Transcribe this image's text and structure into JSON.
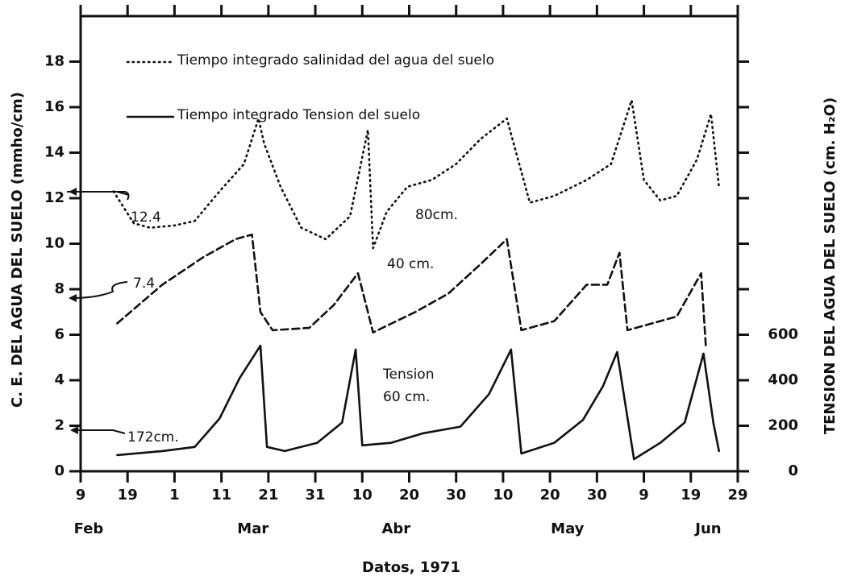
{
  "chart_data": {
    "type": "line",
    "x_title": "Datos, 1971",
    "y_title": "C. E. DEL AGUA DEL SUELO (mmho/cm)",
    "y2_title": "TENSION DEL AGUA DEL SUELO (cm. H₂O)",
    "xlim": [
      0,
      140
    ],
    "xticks": [
      {
        "value": 0,
        "label": "9"
      },
      {
        "value": 10,
        "label": "19"
      },
      {
        "value": 20,
        "label": "1"
      },
      {
        "value": 30,
        "label": "11"
      },
      {
        "value": 40,
        "label": "21"
      },
      {
        "value": 50,
        "label": "31"
      },
      {
        "value": 60,
        "label": "10"
      },
      {
        "value": 70,
        "label": "20"
      },
      {
        "value": 80,
        "label": "30"
      },
      {
        "value": 90,
        "label": "10"
      },
      {
        "value": 100,
        "label": "20"
      },
      {
        "value": 110,
        "label": "30"
      },
      {
        "value": 120,
        "label": "9"
      },
      {
        "value": 130,
        "label": "19"
      },
      {
        "value": 140,
        "label": "29"
      }
    ],
    "month_ticks": [
      {
        "value": 0,
        "label": "Feb"
      },
      {
        "value": 35,
        "label": "Mar"
      },
      {
        "value": 65.5,
        "label": "Abr"
      },
      {
        "value": 102,
        "label": "May"
      },
      {
        "value": 132,
        "label": "Jun"
      }
    ],
    "ylim": [
      0,
      20
    ],
    "yticks": [
      0,
      2,
      4,
      6,
      8,
      10,
      12,
      14,
      16,
      18
    ],
    "y2lim": [
      0,
      2000
    ],
    "y2ticks": [
      0,
      200,
      400,
      600
    ],
    "legend": [
      {
        "label": "Tiempo integrado salinidad del agua del suelo",
        "style": "dotted"
      },
      {
        "label": "Tiempo integrado Tension del suelo",
        "style": "solid"
      }
    ],
    "annotations": [
      "12.4",
      "7.4",
      "172cm.",
      "Tension"
    ],
    "series": [
      {
        "name": "80cm.",
        "color": "#111111",
        "style": "dotted",
        "x": [
          7,
          11.3,
          14.8,
          20,
          24.3,
          29.6,
          34.8,
          37.9,
          39.1,
          42.6,
          47,
          52.2,
          57.4,
          61.2,
          62.3,
          65.2,
          69.6,
          74.8,
          80,
          85.2,
          90.8,
          95.7,
          100.9,
          107.8,
          113,
          117.4,
          120,
          123.5,
          127,
          131.3,
          134.3,
          136
        ],
        "values": [
          12.3,
          10.9,
          10.7,
          10.8,
          11.0,
          12.3,
          13.5,
          15.5,
          14.4,
          12.5,
          10.7,
          10.2,
          11.2,
          15.0,
          9.8,
          11.4,
          12.5,
          12.8,
          13.5,
          14.6,
          15.5,
          11.8,
          12.1,
          12.8,
          13.5,
          16.3,
          12.8,
          11.9,
          12.1,
          13.7,
          15.7,
          12.5
        ]
      },
      {
        "name": "40 cm.",
        "color": "#111111",
        "style": "dashed",
        "x": [
          7.8,
          17.4,
          26.1,
          33,
          36.5,
          38.3,
          40.9,
          48.7,
          53.9,
          59.1,
          61.2,
          62.3,
          64.3,
          71.3,
          78.3,
          85.2,
          90.8,
          93.9,
          100.9,
          107.8,
          112.2,
          114.8,
          116.5,
          127,
          132.2,
          133.2
        ],
        "values": [
          6.5,
          8.2,
          9.4,
          10.2,
          10.4,
          7.0,
          6.2,
          6.3,
          7.3,
          8.7,
          7.0,
          6.1,
          6.3,
          7.0,
          7.8,
          9.1,
          10.2,
          6.2,
          6.6,
          8.2,
          8.2,
          9.6,
          6.2,
          6.8,
          8.7,
          5.5
        ]
      },
      {
        "name": "60 cm.",
        "color": "#111111",
        "style": "solid",
        "axis": "y2",
        "x": [
          7.8,
          17.4,
          24.3,
          29.6,
          33.9,
          38.3,
          39.7,
          43.5,
          50.4,
          55.7,
          58.6,
          60,
          66.1,
          73,
          80.9,
          87,
          91.7,
          93.9,
          100.9,
          107,
          111.3,
          114.3,
          117.9,
          123.5,
          128.7,
          132.7,
          134.8,
          136
        ],
        "values": [
          71,
          89,
          107,
          232,
          410,
          552,
          107,
          89,
          125,
          214,
          535,
          114,
          125,
          167,
          196,
          339,
          535,
          78,
          125,
          225,
          374,
          524,
          53,
          125,
          214,
          517,
          214,
          89
        ]
      }
    ]
  }
}
